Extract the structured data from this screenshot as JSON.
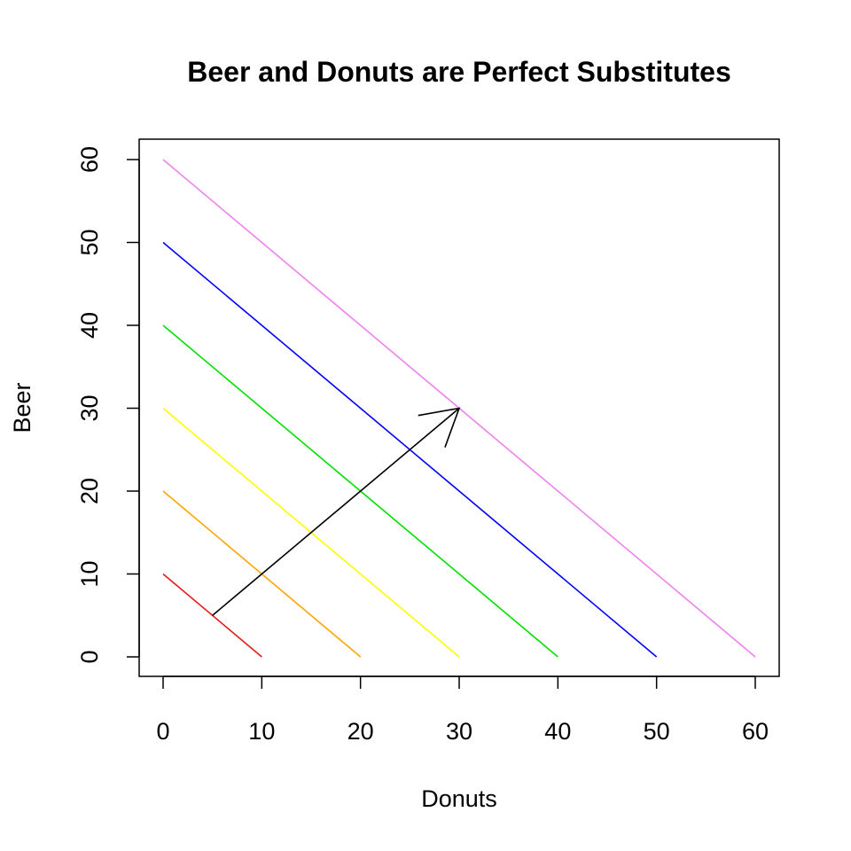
{
  "chart_data": {
    "type": "line",
    "title": "Beer and Donuts are Perfect Substitutes",
    "xlabel": "Donuts",
    "ylabel": "Beer",
    "xlim": [
      0,
      60
    ],
    "ylim": [
      0,
      60
    ],
    "xticks": [
      0,
      10,
      20,
      30,
      40,
      50,
      60
    ],
    "yticks": [
      0,
      10,
      20,
      30,
      40,
      50,
      60
    ],
    "grid": false,
    "series": [
      {
        "color": "#e41a1c",
        "points": [
          [
            0,
            10
          ],
          [
            10,
            0
          ]
        ]
      },
      {
        "color": "#ffa500",
        "points": [
          [
            0,
            20
          ],
          [
            20,
            0
          ]
        ]
      },
      {
        "color": "#ffff00",
        "points": [
          [
            0,
            30
          ],
          [
            30,
            0
          ]
        ]
      },
      {
        "color": "#00e000",
        "points": [
          [
            0,
            40
          ],
          [
            40,
            0
          ]
        ]
      },
      {
        "color": "#0000ff",
        "points": [
          [
            0,
            50
          ],
          [
            50,
            0
          ]
        ]
      },
      {
        "color": "#ee82ee",
        "points": [
          [
            0,
            60
          ],
          [
            60,
            0
          ]
        ]
      }
    ],
    "annotations": [
      {
        "type": "arrow",
        "from": [
          5,
          5
        ],
        "to": [
          30,
          30
        ],
        "color": "#000000"
      }
    ]
  }
}
